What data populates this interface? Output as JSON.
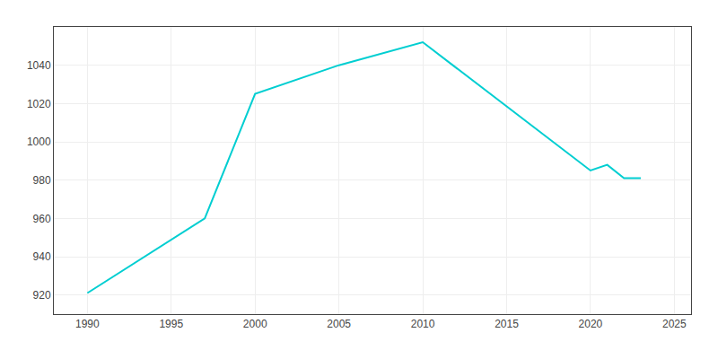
{
  "chart_data": {
    "type": "line",
    "x": [
      1990,
      1997,
      2000,
      2005,
      2010,
      2020,
      2021,
      2022,
      2023
    ],
    "values": [
      921,
      960,
      1025,
      1040,
      1052,
      985,
      988,
      981,
      981
    ],
    "color": "#00CED1",
    "xlim": [
      1988,
      2026
    ],
    "ylim": [
      910,
      1060
    ],
    "xticks": [
      1990,
      1995,
      2000,
      2005,
      2010,
      2015,
      2020,
      2025
    ],
    "yticks": [
      920,
      940,
      960,
      980,
      1000,
      1020,
      1040
    ],
    "grid": true
  }
}
